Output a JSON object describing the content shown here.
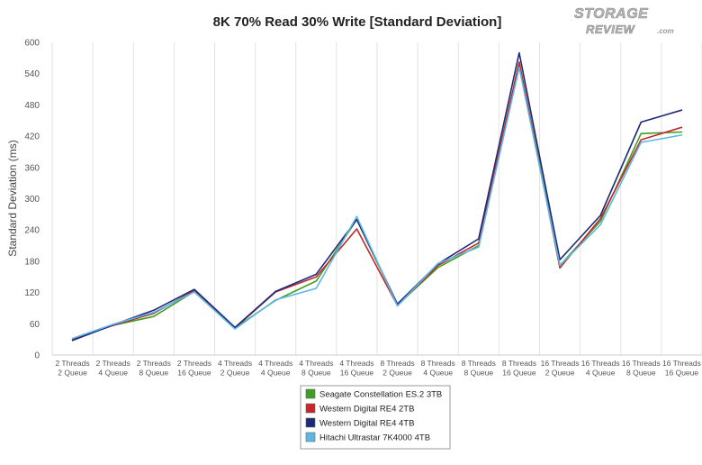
{
  "chart_data": {
    "type": "line",
    "title": "8K 70% Read 30% Write [Standard Deviation]",
    "xlabel": "",
    "ylabel": "Standard Deviation (ms)",
    "ylim": [
      0,
      600
    ],
    "yticks": [
      0,
      60,
      120,
      180,
      240,
      300,
      360,
      420,
      480,
      540,
      600
    ],
    "grid": "vertical",
    "legend_position": "bottom",
    "categories": [
      [
        "2 Threads",
        "2 Queue"
      ],
      [
        "2 Threads",
        "4 Queue"
      ],
      [
        "2 Threads",
        "8 Queue"
      ],
      [
        "2 Threads",
        "16 Queue"
      ],
      [
        "4 Threads",
        "2 Queue"
      ],
      [
        "4 Threads",
        "4 Queue"
      ],
      [
        "4 Threads",
        "8 Queue"
      ],
      [
        "4 Threads",
        "16 Queue"
      ],
      [
        "8 Threads",
        "2 Queue"
      ],
      [
        "8 Threads",
        "4 Queue"
      ],
      [
        "8 Threads",
        "8 Queue"
      ],
      [
        "8 Threads",
        "16 Queue"
      ],
      [
        "16 Threads",
        "2 Queue"
      ],
      [
        "16 Threads",
        "4 Queue"
      ],
      [
        "16 Threads",
        "8 Queue"
      ],
      [
        "16 Threads",
        "16 Queue"
      ]
    ],
    "series": [
      {
        "name": "Seagate Constellation ES.2 3TB",
        "color": "#3e9e1f",
        "values": [
          30,
          57,
          74,
          122,
          52,
          105,
          142,
          260,
          96,
          168,
          210,
          562,
          172,
          257,
          425,
          428
        ]
      },
      {
        "name": "Western Digital RE4 2TB",
        "color": "#c42828",
        "values": [
          30,
          57,
          80,
          124,
          52,
          121,
          150,
          242,
          95,
          172,
          215,
          562,
          167,
          262,
          413,
          437
        ]
      },
      {
        "name": "Western Digital RE4 4TB",
        "color": "#1c2a78",
        "values": [
          28,
          58,
          86,
          126,
          53,
          122,
          155,
          260,
          98,
          175,
          223,
          580,
          183,
          268,
          447,
          470
        ]
      },
      {
        "name": "Hitachi Ultrastar 7K4000 4TB",
        "color": "#5bb8e6",
        "values": [
          32,
          59,
          82,
          121,
          50,
          106,
          128,
          266,
          94,
          176,
          207,
          552,
          172,
          250,
          408,
          422
        ]
      }
    ]
  },
  "logo": {
    "line1": "STORAGE",
    "line2": "REVIEW",
    "suffix": ".com"
  }
}
